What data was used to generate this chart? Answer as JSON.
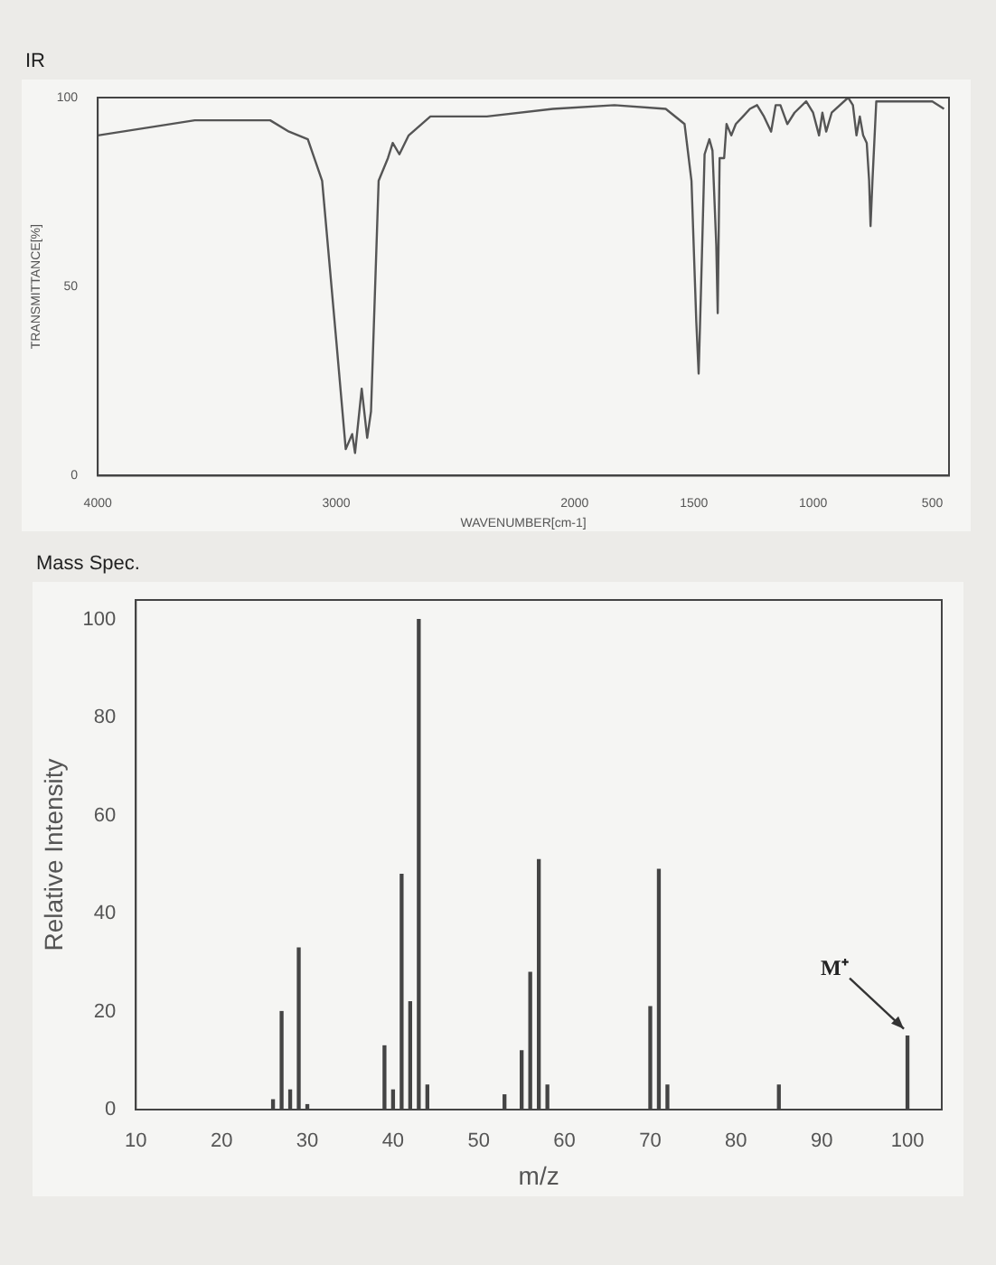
{
  "chart_data": [
    {
      "type": "line",
      "title": "IR",
      "xlabel": "WAVENUMBER[cm-1]",
      "ylabel": "TRANSMITTANCE[%]",
      "color": "#555555",
      "marker": "none",
      "grid": false,
      "x": [
        4000,
        3593,
        3277,
        3198,
        3119,
        3059,
        3000,
        2960,
        2933,
        2921,
        2893,
        2870,
        2854,
        2822,
        2783,
        2763,
        2735,
        2696,
        2605,
        2368,
        2091,
        1833,
        1618,
        1539,
        1510,
        1490,
        1480,
        1471,
        1455,
        1435,
        1422,
        1406,
        1400,
        1392,
        1373,
        1363,
        1343,
        1324,
        1294,
        1265,
        1235,
        1206,
        1176,
        1157,
        1137,
        1108,
        1078,
        1029,
        1000,
        975,
        961,
        945,
        922,
        853,
        833,
        818,
        804,
        790,
        775,
        765,
        759,
        751,
        735,
        618,
        500,
        451
      ],
      "values": [
        90,
        94,
        94,
        91,
        89,
        78,
        36,
        7,
        11,
        6,
        23,
        10,
        17,
        78,
        84,
        88,
        85,
        90,
        95,
        95,
        97,
        98,
        97,
        93,
        78,
        41,
        27,
        47,
        85,
        89,
        86,
        61,
        43,
        84,
        84,
        93,
        90,
        93,
        95,
        97,
        98,
        95,
        91,
        98,
        98,
        93,
        96,
        99,
        96,
        90,
        96,
        91,
        96,
        100,
        98,
        90,
        95,
        90,
        88,
        78,
        66,
        78,
        99,
        99,
        99,
        97
      ],
      "xlim": [
        4000,
        430
      ],
      "xticks": [
        4000,
        3000,
        2000,
        1500,
        1000,
        500
      ],
      "ylim": [
        0,
        100
      ],
      "yticks": [
        0,
        50,
        100
      ]
    },
    {
      "type": "bar",
      "title": "Mass Spec.",
      "xlabel": "m/z",
      "ylabel": "Relative Intensity",
      "color": "#444444",
      "grid": false,
      "x": [
        26,
        27,
        28,
        29,
        30,
        39,
        40,
        41,
        42,
        43,
        44,
        53,
        55,
        56,
        57,
        58,
        70,
        71,
        72,
        85,
        100
      ],
      "values": [
        2,
        20,
        4,
        33,
        1,
        13,
        4,
        48,
        22,
        100,
        5,
        3,
        12,
        28,
        51,
        5,
        21,
        49,
        5,
        5,
        15
      ],
      "xlim": [
        10,
        104
      ],
      "xticks": [
        10,
        20,
        30,
        40,
        50,
        60,
        70,
        80,
        90,
        100
      ],
      "ylim": [
        0,
        104
      ],
      "yticks": [
        0,
        20,
        40,
        60,
        80,
        100
      ],
      "annotations": [
        {
          "text": "M⁺",
          "x": 100,
          "y": 15
        }
      ]
    }
  ]
}
